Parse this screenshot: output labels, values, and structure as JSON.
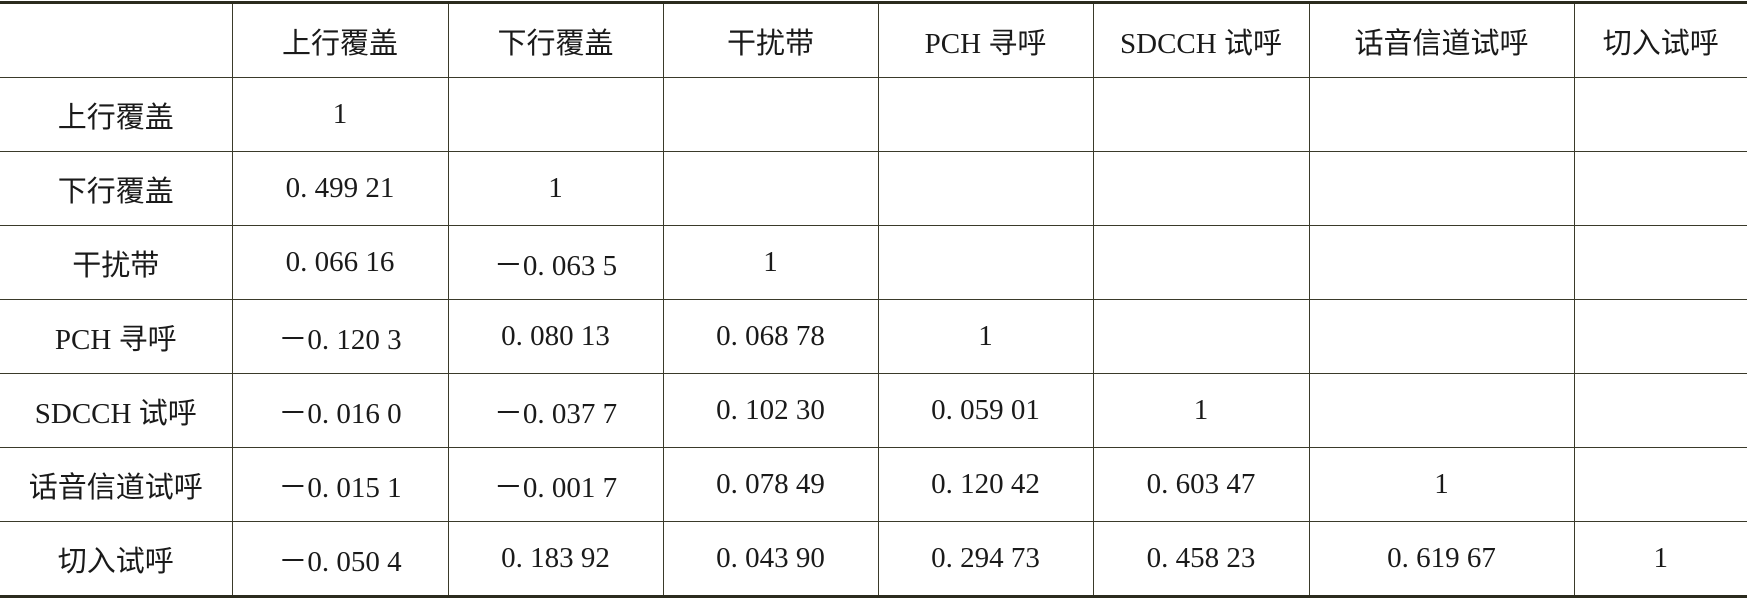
{
  "table": {
    "columns": [
      "上行覆盖",
      "下行覆盖",
      "干扰带",
      "PCH 寻呼",
      "SDCCH 试呼",
      "话音信道试呼",
      "切入试呼"
    ],
    "rows": [
      {
        "label": "上行覆盖",
        "cells": [
          "1"
        ]
      },
      {
        "label": "下行覆盖",
        "cells": [
          "0. 499 21",
          "1"
        ]
      },
      {
        "label": "干扰带",
        "cells": [
          "0. 066 16",
          "－0. 063 5",
          "1"
        ]
      },
      {
        "label": "PCH 寻呼",
        "cells": [
          "－0. 120 3",
          "0. 080 13",
          "0. 068 78",
          "1"
        ]
      },
      {
        "label": "SDCCH 试呼",
        "cells": [
          "－0. 016 0",
          "－0. 037 7",
          "0. 102 30",
          "0. 059 01",
          "1"
        ]
      },
      {
        "label": "话音信道试呼",
        "cells": [
          "－0. 015 1",
          "－0. 001 7",
          "0. 078 49",
          "0. 120 42",
          "0. 603 47",
          "1"
        ]
      },
      {
        "label": "切入试呼",
        "cells": [
          "－0. 050 4",
          "0. 183 92",
          "0. 043 90",
          "0. 294 73",
          "0. 458 23",
          "0. 619 67",
          "1"
        ]
      }
    ]
  }
}
